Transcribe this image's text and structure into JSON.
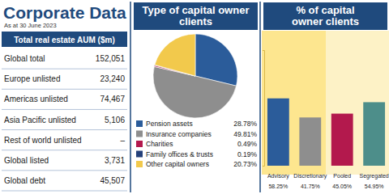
{
  "header": {
    "title": "Corporate Data",
    "subtitle": "As at 30 June 2023"
  },
  "table": {
    "title": "Total real estate AUM ($m)",
    "rows": [
      [
        "Global total",
        "152,051"
      ],
      [
        "Europe unlisted",
        "23,240"
      ],
      [
        "Americas unlisted",
        "74,467"
      ],
      [
        "Asia Pacific unlisted",
        "5,106"
      ],
      [
        "Rest of world unlisted",
        "–"
      ],
      [
        "Global listed",
        "3,731"
      ],
      [
        "Global debt",
        "45,507"
      ]
    ]
  },
  "chart_data": [
    {
      "type": "pie",
      "title": "Type of capital owner clients",
      "categories": [
        "Pension assets",
        "Insurance companies",
        "Charities",
        "Family offices & trusts",
        "Other capital owners"
      ],
      "values": [
        28.78,
        49.81,
        0.49,
        0.19,
        20.73
      ],
      "value_labels": [
        "28.78%",
        "49.81%",
        "0.49%",
        "0.19%",
        "20.73%"
      ],
      "colors": [
        "#2b5c9a",
        "#8e8e8e",
        "#b3194d",
        "#24407a",
        "#f2c94c"
      ],
      "legend": "bottom"
    },
    {
      "type": "bar",
      "title": "% of capital owner clients",
      "categories": [
        "Advisory",
        "Discretionary",
        "Pooled",
        "Segregated"
      ],
      "values": [
        58.25,
        41.75,
        45.05,
        54.95
      ],
      "value_labels": [
        "58.25%",
        "41.75%",
        "45.05%",
        "54.95%"
      ],
      "colors": [
        "#2b5c9a",
        "#8e8e8e",
        "#b3194d",
        "#4d8e8a"
      ],
      "ylim": [
        0,
        100
      ],
      "yticks": [
        0,
        100
      ],
      "tick_labels": "x",
      "data_labels": true
    }
  ]
}
